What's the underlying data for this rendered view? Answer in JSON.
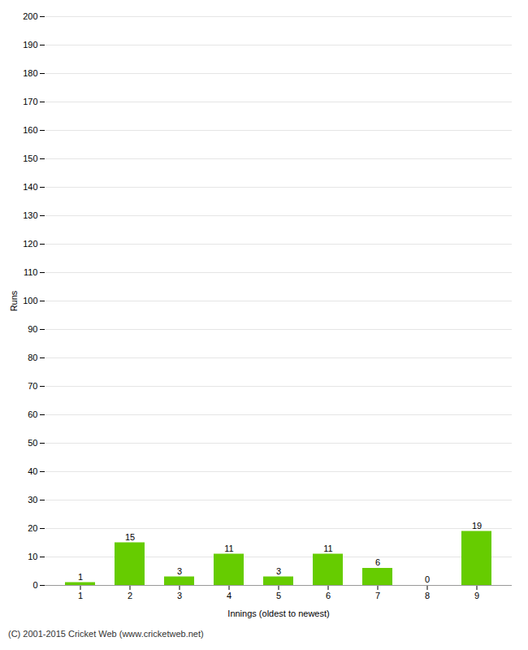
{
  "chart_data": {
    "type": "bar",
    "xlabel": "Innings (oldest to newest)",
    "ylabel": "Runs",
    "categories": [
      "1",
      "2",
      "3",
      "4",
      "5",
      "6",
      "7",
      "8",
      "9"
    ],
    "values": [
      1,
      15,
      3,
      11,
      3,
      11,
      6,
      0,
      19
    ],
    "color": "#66cc00",
    "ylim": [
      0,
      200
    ],
    "yticks": [
      0,
      10,
      20,
      30,
      40,
      50,
      60,
      70,
      80,
      90,
      100,
      110,
      120,
      130,
      140,
      150,
      160,
      170,
      180,
      190,
      200
    ],
    "grid": true,
    "data_labels": true,
    "annotations": [
      "(C) 2001-2015 Cricket Web (www.cricketweb.net)"
    ]
  }
}
